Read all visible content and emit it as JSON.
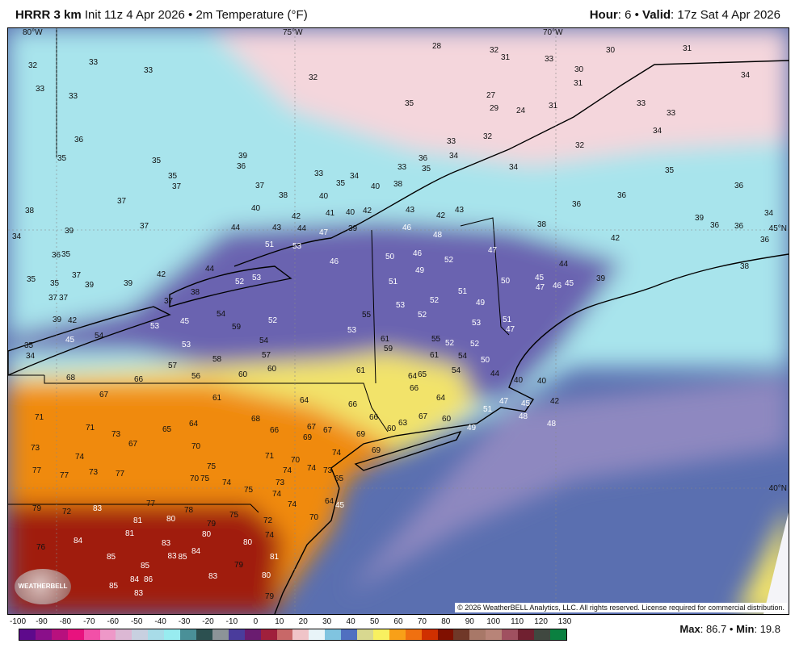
{
  "header": {
    "model": "HRRR 3 km",
    "init": "Init 11z 4 Apr 2026",
    "separator": "•",
    "field": "2m Temperature (°F)",
    "hour_label": "Hour",
    "hour": "6",
    "valid_label": "Valid",
    "valid": "17z Sat 4 Apr 2026"
  },
  "map": {
    "longitude_labels": [
      "80°W",
      "75°W",
      "70°W"
    ],
    "latitude_labels": [
      "45°N",
      "40°N"
    ],
    "copyright": "© 2026 WeatherBELL Analytics, LLC. All rights reserved. License required for commercial distribution.",
    "logo_text": "WeatherBELL",
    "temperatures": [
      32,
      33,
      33,
      33,
      33,
      32,
      28,
      32,
      31,
      33,
      30,
      30,
      31,
      34,
      35,
      27,
      29,
      24,
      31,
      31,
      33,
      34,
      33,
      36,
      35,
      35,
      39,
      36,
      32,
      33,
      32,
      34,
      34,
      36,
      35,
      33,
      33,
      34,
      35,
      38,
      40,
      35,
      36,
      36,
      36,
      37,
      35,
      37,
      38,
      40,
      40,
      37,
      38,
      37,
      39,
      34,
      41,
      40,
      42,
      43,
      42,
      43,
      42,
      43,
      44,
      44,
      39,
      46,
      48,
      38,
      42,
      39,
      36,
      36,
      34,
      36,
      51,
      53,
      47,
      46,
      50,
      46,
      49,
      52,
      47,
      44,
      38,
      36,
      35,
      35,
      35,
      37,
      39,
      39,
      37,
      37,
      42,
      44,
      52,
      53,
      38,
      37,
      51,
      51,
      50,
      45,
      47,
      46,
      45,
      39,
      39,
      42,
      53,
      45,
      54,
      59,
      52,
      55,
      53,
      52,
      52,
      49,
      53,
      51,
      47,
      45,
      35,
      54,
      54,
      53,
      61,
      59,
      55,
      52,
      52,
      34,
      53,
      58,
      57,
      56,
      57,
      61,
      54,
      50,
      44,
      40,
      40,
      68,
      66,
      60,
      60,
      61,
      64,
      65,
      54,
      67,
      61,
      64,
      66,
      64,
      47,
      45,
      42,
      51,
      48,
      48,
      71,
      71,
      73,
      67,
      65,
      64,
      68,
      66,
      67,
      67,
      69,
      66,
      69,
      66,
      60,
      63,
      67,
      60,
      49,
      73,
      74,
      70,
      71,
      70,
      74,
      69,
      77,
      77,
      73,
      77,
      75,
      70,
      75,
      74,
      75,
      74,
      74,
      73,
      73,
      65,
      74,
      74,
      64,
      45,
      79,
      72,
      83,
      77,
      78,
      81,
      80,
      75,
      79,
      80,
      72,
      70,
      74,
      84,
      81,
      76,
      83,
      83,
      84,
      80,
      85,
      85,
      85,
      79,
      81,
      86,
      85,
      84,
      83,
      80,
      83,
      79
    ],
    "colors": {
      "frame": "#000000",
      "ocean": "#5a6fb0",
      "cold_north": "#f4d6dc",
      "cyan": "#a8e4ec",
      "purple": "#6a63b0",
      "yellow": "#f2e36a",
      "orange": "#f08a10",
      "dark_red": "#a01c08"
    }
  },
  "colorbar": {
    "ticks": [
      "-100",
      "-90",
      "-80",
      "-70",
      "-60",
      "-50",
      "-40",
      "-30",
      "-20",
      "-10",
      "0",
      "10",
      "20",
      "30",
      "40",
      "50",
      "60",
      "70",
      "80",
      "90",
      "100",
      "110",
      "120",
      "130"
    ],
    "colors": [
      "#5e0a8c",
      "#8a0f8a",
      "#b8107e",
      "#e8127e",
      "#f250a8",
      "#ee98c8",
      "#dcb8d4",
      "#c8d0e0",
      "#a8dce8",
      "#98ecf0",
      "#4a9098",
      "#2c5050",
      "#8c9498",
      "#4a3c9c",
      "#6a1c70",
      "#a0203c",
      "#c86868",
      "#f0c4c8",
      "#e8f4f8",
      "#80c4e0",
      "#5070c0",
      "#d8d890",
      "#f8f060",
      "#f8a018",
      "#f07010",
      "#d03000",
      "#801000",
      "#703828",
      "#a87868",
      "#b88478",
      "#a05060",
      "#702030",
      "#404840",
      "#0a8040"
    ],
    "max_label": "Max",
    "max": "86.7",
    "min_label": "Min",
    "min": "19.8"
  }
}
